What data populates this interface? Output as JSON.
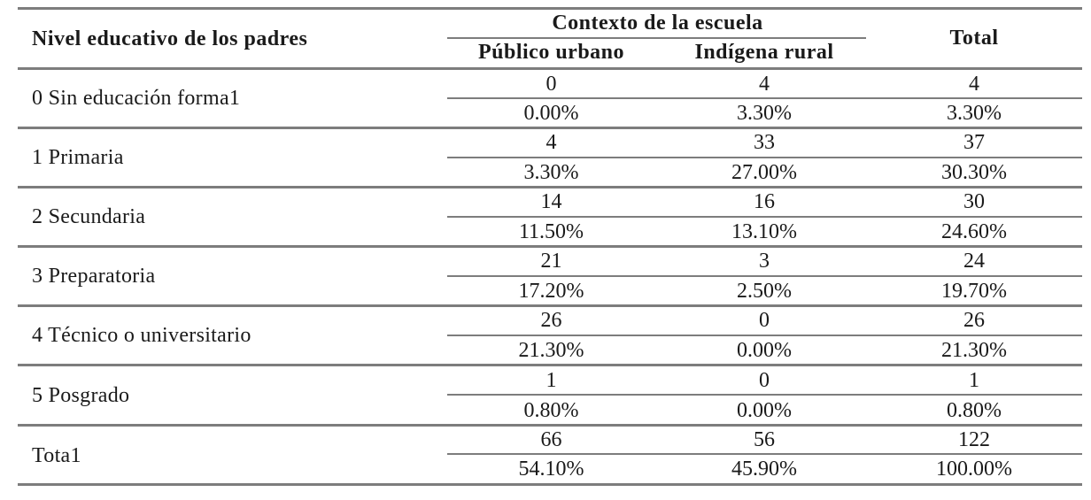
{
  "table": {
    "header": {
      "row_label": "Nivel educativo de los padres",
      "group_label": "Contexto de la escuela",
      "col1": "Público urbano",
      "col2": "Indígena rural",
      "total": "Total"
    },
    "rows": [
      {
        "label": "0 Sin educación forma1",
        "counts": [
          "0",
          "4",
          "4"
        ],
        "percents": [
          "0.00%",
          "3.30%",
          "3.30%"
        ]
      },
      {
        "label": "1 Primaria",
        "counts": [
          "4",
          "33",
          "37"
        ],
        "percents": [
          "3.30%",
          "27.00%",
          "30.30%"
        ]
      },
      {
        "label": "2 Secundaria",
        "counts": [
          "14",
          "16",
          "30"
        ],
        "percents": [
          "11.50%",
          "13.10%",
          "24.60%"
        ]
      },
      {
        "label": "3 Preparatoria",
        "counts": [
          "21",
          "3",
          "24"
        ],
        "percents": [
          "17.20%",
          "2.50%",
          "19.70%"
        ]
      },
      {
        "label": "4 Técnico o universitario",
        "counts": [
          "26",
          "0",
          "26"
        ],
        "percents": [
          "21.30%",
          "0.00%",
          "21.30%"
        ]
      },
      {
        "label": "5 Posgrado",
        "counts": [
          "1",
          "0",
          "1"
        ],
        "percents": [
          "0.80%",
          "0.00%",
          "0.80%"
        ]
      },
      {
        "label": "Tota1",
        "counts": [
          "66",
          "56",
          "122"
        ],
        "percents": [
          "54.10%",
          "45.90%",
          "100.00%"
        ]
      }
    ]
  }
}
